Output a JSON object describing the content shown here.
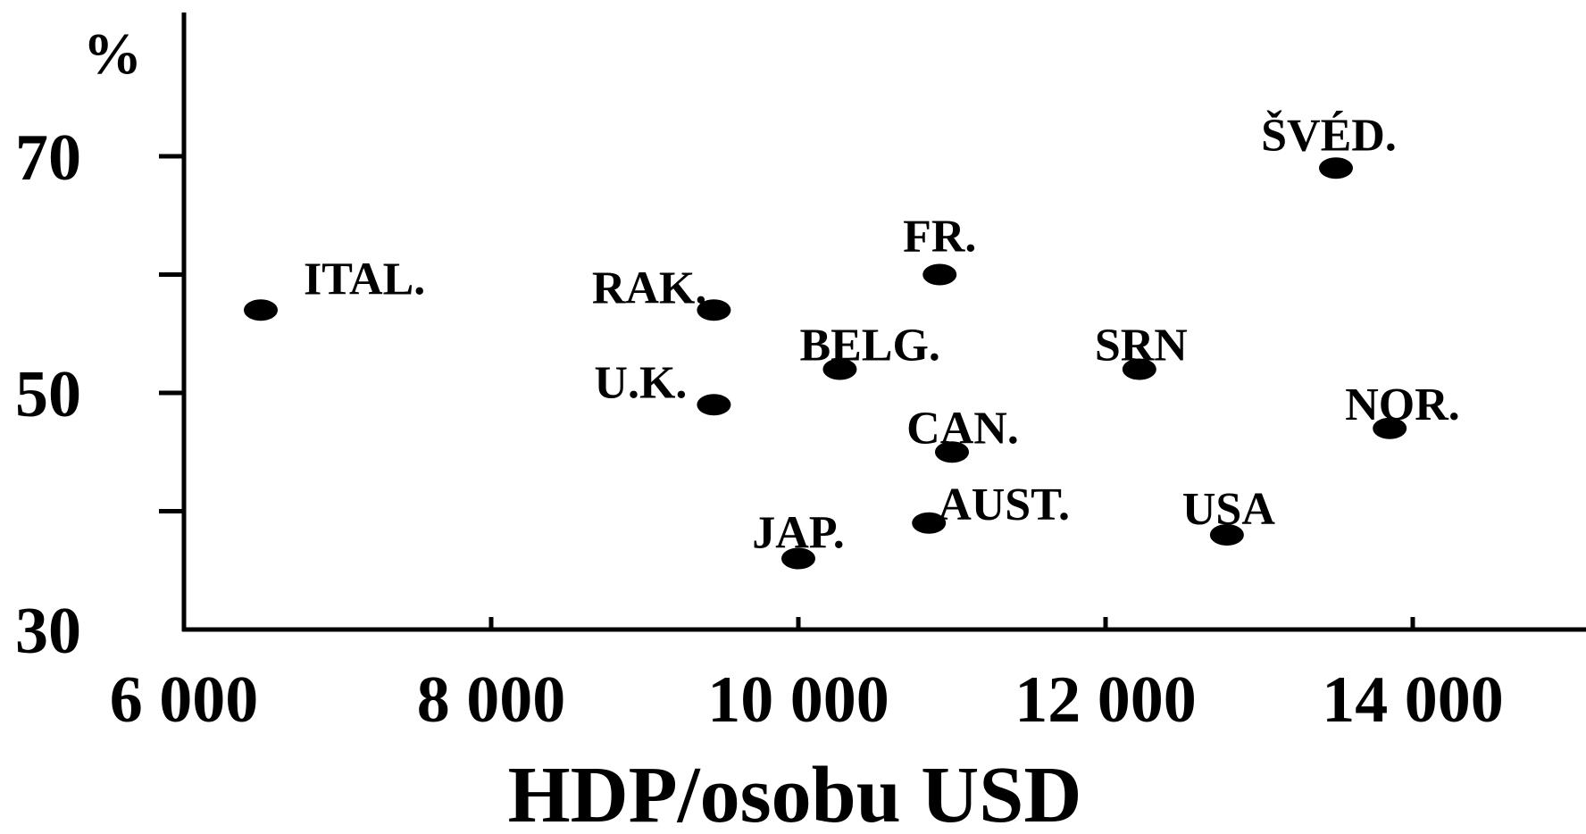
{
  "chart_data": {
    "type": "scatter",
    "title": "",
    "xlabel": "HDP/osobu USD",
    "ylabel": "%",
    "xlim": [
      6000,
      14000
    ],
    "ylim": [
      30,
      80
    ],
    "x_ticks": [
      6000,
      8000,
      10000,
      12000,
      14000
    ],
    "x_tick_labels": [
      "6 000",
      "8 000",
      "10 000",
      "12 000",
      "14 000"
    ],
    "y_ticks": [
      30,
      40,
      50,
      60,
      70
    ],
    "y_tick_labels": [
      "30",
      "",
      "50",
      "",
      "70"
    ],
    "grid": false,
    "points": [
      {
        "label": "ITAL.",
        "x": 6500,
        "y": 57
      },
      {
        "label": "RAK.",
        "x": 9450,
        "y": 57
      },
      {
        "label": "U.K.",
        "x": 9450,
        "y": 49
      },
      {
        "label": "BELG.",
        "x": 10270,
        "y": 52
      },
      {
        "label": "FR.",
        "x": 10920,
        "y": 60
      },
      {
        "label": "CAN.",
        "x": 11000,
        "y": 45
      },
      {
        "label": "AUST.",
        "x": 10850,
        "y": 39
      },
      {
        "label": "JAP.",
        "x": 10000,
        "y": 36
      },
      {
        "label": "SRN",
        "x": 12220,
        "y": 52
      },
      {
        "label": "USA",
        "x": 12790,
        "y": 38
      },
      {
        "label": "NOR.",
        "x": 13850,
        "y": 47
      },
      {
        "label": "ŠVÉD.",
        "x": 13500,
        "y": 69
      }
    ],
    "colors": {
      "points": "#000000",
      "axes": "#000000"
    }
  }
}
